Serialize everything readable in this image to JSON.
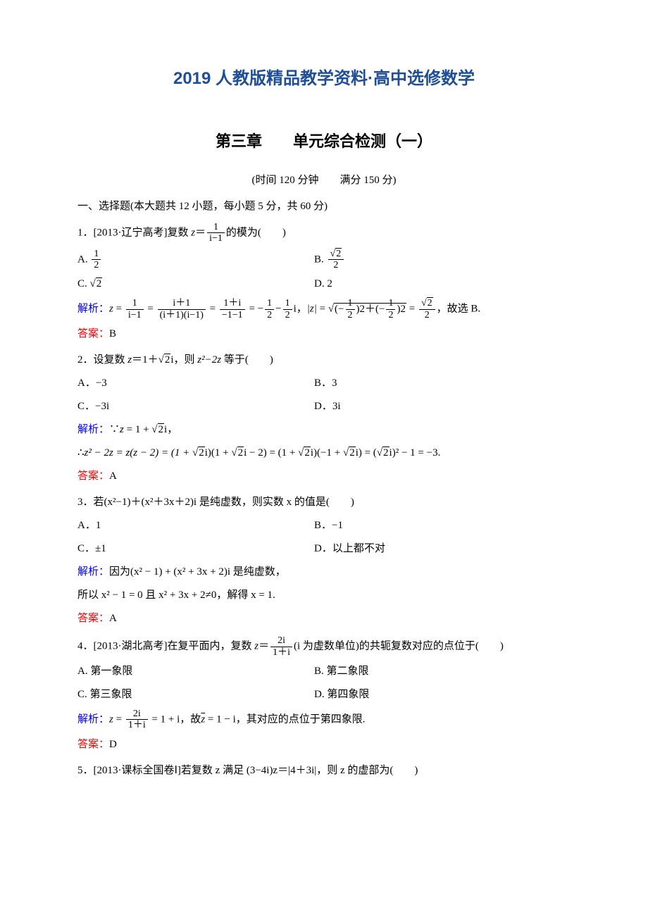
{
  "colors": {
    "title_color": "#1f4e99",
    "analysis_color": "#0000ff",
    "answer_color": "#ff0000",
    "text_color": "#000000",
    "background": "#ffffff"
  },
  "typography": {
    "body_fontsize": 16,
    "title_fontsize": 24,
    "chapter_fontsize": 22
  },
  "header": {
    "main_title": "2019 人教版精品教学资料·高中选修数学",
    "chapter_title": "第三章　　单元综合检测（一）",
    "time_score": "(时间 120 分钟　　满分 150 分)"
  },
  "section1": {
    "title": "一、选择题(本大题共 12 小题，每小题 5 分，共 60 分)"
  },
  "labels": {
    "analysis": "解析：",
    "answer": "答案："
  },
  "q1": {
    "prefix": "1．[2013·辽宁高考]复数 ",
    "var": "z",
    "eq": "＝",
    "frac_num": "1",
    "frac_den": "i−1",
    "suffix": "的模为(　　)",
    "optA_prefix": "A. ",
    "optA_num": "1",
    "optA_den": "2",
    "optB_prefix": "B. ",
    "optB_num_sqrt": "2",
    "optB_den": "2",
    "optC_prefix": "C. ",
    "optC_sqrt": "2",
    "optD": "D. 2",
    "analysis_p1": "z",
    "analysis_p2": " = ",
    "a_f1_num": "1",
    "a_f1_den": "i−1",
    "a_eq1": " = ",
    "a_f2_num": "i＋1",
    "a_f2_den": "(i＋1)(i−1)",
    "a_eq2": " = ",
    "a_f3_num": "1＋i",
    "a_f3_den": "−1−1",
    "a_eq3": " = −",
    "a_f4_num": "1",
    "a_f4_den": "2",
    "a_minus": "−",
    "a_f5_num": "1",
    "a_f5_den": "2",
    "a_i": "i，",
    "a_mod": "|z|",
    "a_eq4": " = ",
    "a_sqrt_inner_f1_num": "1",
    "a_sqrt_inner_f1_den": "2",
    "a_sqrt_inner_plus": ")2＋(−",
    "a_sqrt_inner_f2_num": "1",
    "a_sqrt_inner_f2_den": "2",
    "a_sqrt_inner_end": ")2",
    "a_sqrt_open": "(−",
    "a_eq5": " = ",
    "a_res_num_sqrt": "2",
    "a_res_den": "2",
    "a_tail": "，故选 B.",
    "answer": "B"
  },
  "q2": {
    "line": "2．设复数 ",
    "var": "z",
    "eq": "＝1＋",
    "sqrt": "2",
    "i": "i，则 ",
    "expr": "z²−2z",
    "suffix": " 等于(　　)",
    "optA": "A．−3",
    "optB": "B．3",
    "optC": "C．−3i",
    "optD": "D．3i",
    "a1": "∵",
    "a1_z": "z",
    "a1_eq": " = 1 + ",
    "a1_sqrt": "2",
    "a1_i": "i，",
    "a2_pre": "∴",
    "a2_expr": "z² − 2z = z(z − 2) = (1 + ",
    "a2_sqrt1": "2",
    "a2_p2": "i)(1 + ",
    "a2_sqrt2": "2",
    "a2_p3": "i − 2) = (1 + ",
    "a2_sqrt3": "2",
    "a2_p4": "i)(−1 + ",
    "a2_sqrt4": "2",
    "a2_p5": "i) = (",
    "a2_sqrt5": "2",
    "a2_p6": "i)² − 1 = −3.",
    "answer": "A"
  },
  "q3": {
    "line": "3．若(x²−1)＋(x²＋3x＋2)i 是纯虚数，则实数 x 的值是(　　)",
    "optA": "A．1",
    "optB": "B．−1",
    "optC": "C．±1",
    "optD": "D．以上都不对",
    "a1": "因为(x² − 1) + (x² + 3x + 2)i 是纯虚数，",
    "a2": "所以 x² − 1 = 0 且 x² + 3x + 2≠0，解得 x = 1.",
    "answer": "A"
  },
  "q4": {
    "prefix": "4．[2013·湖北高考]在复平面内，复数 ",
    "var": "z",
    "eq": "＝",
    "frac_num": "2i",
    "frac_den": "1＋i",
    "suffix": "(i 为虚数单位)的共轭复数对应的点位于(　　)",
    "optA": "A. 第一象限",
    "optB": "B. 第二象限",
    "optC": "C. 第三象限",
    "optD": "D. 第四象限",
    "a_var": "z",
    "a_eq": " = ",
    "a_frac_num": "2i",
    "a_frac_den": "1＋i",
    "a_p2": " = 1 + i，故",
    "a_zbar": "z",
    "a_p3": " = 1 − i，其对应的点位于第四象限.",
    "answer": "D"
  },
  "q5": {
    "line": "5．[2013·课标全国卷Ⅰ]若复数 z 满足 (3−4i)z＝|4＋3i|，则 z 的虚部为(　　)"
  }
}
